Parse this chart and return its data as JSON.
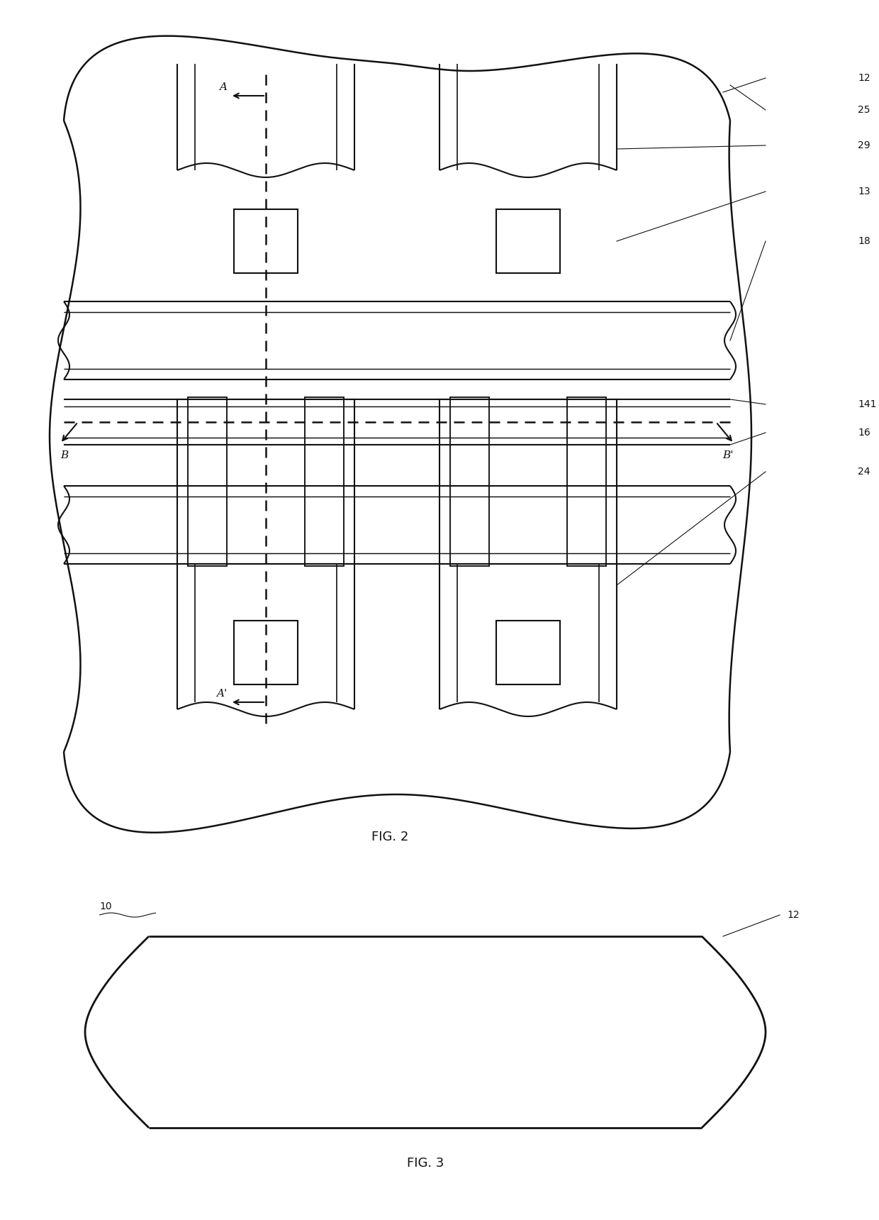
{
  "fig_width": 12.4,
  "fig_height": 17.2,
  "dpi": 100,
  "bg_color": "#ffffff",
  "lc": "#111111",
  "lw": 1.5,
  "dlw": 1.8,
  "fig2_title": "FIG. 2",
  "fig3_title": "FIG. 3",
  "ref_labels": [
    "12",
    "25",
    "29",
    "13",
    "18",
    "141",
    "16",
    "24"
  ],
  "fig3_label_10": "10",
  "fig3_label_12": "12"
}
